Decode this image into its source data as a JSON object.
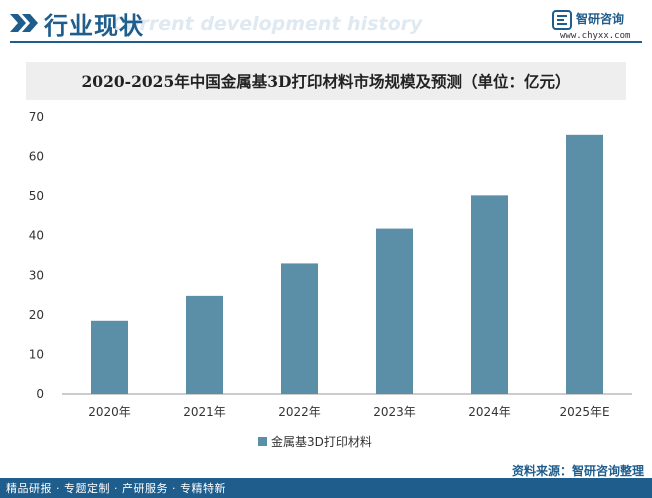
{
  "header": {
    "title": "行业现状",
    "subtitle": "Current development history",
    "logo_name": "智研咨询",
    "logo_url": "www.chyxx.com"
  },
  "footer": {
    "tagline": "精品研报 · 专题定制 · 产研服务 · 专精特新",
    "source": "资料来源：智研咨询整理"
  },
  "colors": {
    "bar": "#5b8fa8",
    "brand": "#1e5d8c",
    "axis": "#999999"
  },
  "chart_data": {
    "type": "bar",
    "title": "2020-2025年中国金属基3D打印材料市场规模及预测（单位：亿元）",
    "categories": [
      "2020年",
      "2021年",
      "2022年",
      "2023年",
      "2024年",
      "2025年E"
    ],
    "series": [
      {
        "name": "金属基3D打印材料",
        "values": [
          18.5,
          24.8,
          33.0,
          41.8,
          50.2,
          65.5
        ]
      }
    ],
    "ylim": [
      0,
      70
    ],
    "yticks": [
      0,
      10,
      20,
      30,
      40,
      50,
      60,
      70
    ],
    "xlabel": "",
    "ylabel": "",
    "legend": "bottom-center"
  }
}
